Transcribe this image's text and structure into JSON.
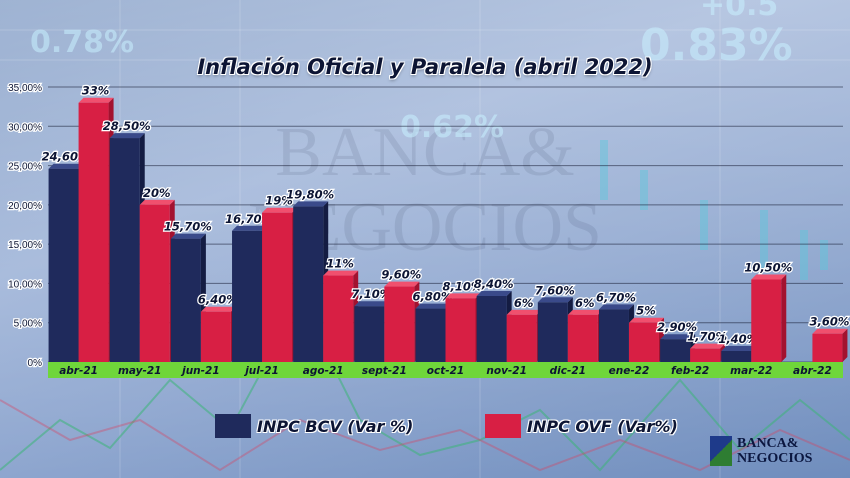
{
  "chart_data": {
    "type": "bar",
    "title": "Inflación Oficial  y Paralela  (abril 2022)",
    "categories": [
      "abr-21",
      "may-21",
      "jun-21",
      "jul-21",
      "ago-21",
      "sept-21",
      "oct-21",
      "nov-21",
      "dic-21",
      "ene-22",
      "feb-22",
      "mar-22",
      "abr-22"
    ],
    "series": [
      {
        "name": "INPC  BCV (Var %)",
        "color": "#1f2a5c",
        "values": [
          24.6,
          28.5,
          15.7,
          16.7,
          19.8,
          7.1,
          6.8,
          8.4,
          7.6,
          6.7,
          2.9,
          1.4,
          null
        ],
        "labels": [
          "24,60%",
          "28,50%",
          "15,70%",
          "16,70%",
          "19,80%",
          "7,10%",
          "6,80%",
          "8,40%",
          "7,60%",
          "6,70%",
          "2,90%",
          "1,40%",
          ""
        ]
      },
      {
        "name": "INPC  OVF (Var%)",
        "color": "#d81f44",
        "values": [
          33,
          20,
          6.4,
          19,
          11,
          9.6,
          8.1,
          6,
          6,
          5,
          1.7,
          10.5,
          3.6
        ],
        "labels": [
          "33%",
          "20%",
          "6,40%",
          "19%",
          "11%",
          "9,60%",
          "8,10%",
          "6%",
          "6%",
          "5%",
          "1,70%",
          "10,50%",
          "3,60%"
        ]
      }
    ],
    "ylim": [
      0,
      35
    ],
    "yticks": [
      "0%",
      "5,00%",
      "10,00%",
      "15,00%",
      "20,00%",
      "25,00%",
      "30,00%",
      "35,00%"
    ],
    "grid": true,
    "legend_position": "bottom"
  },
  "background": {
    "numbers": [
      "0.78%",
      "0.83%",
      "0.62%",
      "+0.5"
    ],
    "watermark": "BANCA & NEGOCIOS"
  },
  "logo": {
    "line1": "BANCA&",
    "line2": "NEGOCIOS"
  }
}
